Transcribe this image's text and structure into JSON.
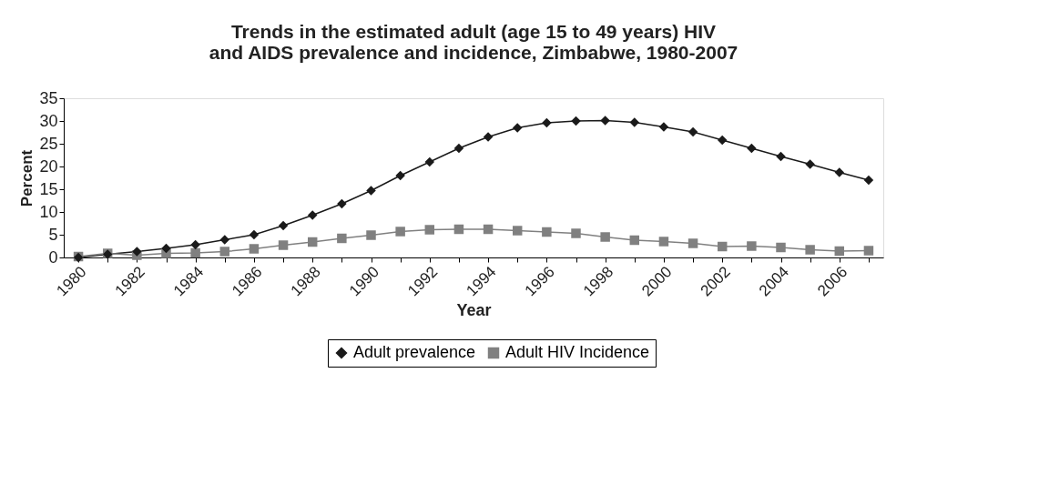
{
  "chart_data": {
    "type": "line",
    "title": "Trends in the estimated adult (age 15 to 49 years) HIV and AIDS prevalence and incidence, Zimbabwe, 1980-2007",
    "xlabel": "Year",
    "ylabel": "Percent",
    "categories": [
      "1980",
      null,
      "1982",
      null,
      "1984",
      null,
      "1986",
      null,
      "1988",
      null,
      "1990",
      null,
      "1992",
      null,
      "1994",
      null,
      "1996",
      null,
      "1998",
      null,
      "2000",
      null,
      "2002",
      null,
      "2004",
      null,
      "2006",
      null
    ],
    "series": [
      {
        "name": "Adult prevalence",
        "color": "#1a1a1a",
        "marker": "diamond",
        "values": [
          0,
          0.7,
          1.3,
          2,
          2.8,
          3.9,
          5,
          7,
          9.3,
          11.8,
          14.7,
          18,
          21,
          24,
          26.5,
          28.5,
          29.6,
          30,
          30.1,
          29.7,
          28.7,
          27.6,
          25.8,
          24,
          22.2,
          20.5,
          18.7,
          17
        ]
      },
      {
        "name": "Adult HIV Incidence",
        "color": "#808080",
        "marker": "square",
        "values": [
          0.2,
          0.9,
          0.5,
          0.9,
          1,
          1.3,
          1.9,
          2.7,
          3.4,
          4.2,
          4.9,
          5.7,
          6.1,
          6.2,
          6.2,
          5.9,
          5.6,
          5.3,
          4.5,
          3.8,
          3.5,
          3.1,
          2.4,
          2.5,
          2.2,
          1.7,
          1.4,
          1.5
        ]
      }
    ],
    "ylim": [
      0,
      35
    ],
    "yticks": [
      0,
      5,
      10,
      15,
      20,
      25,
      30,
      35
    ],
    "grid": false,
    "legend": "bottom"
  }
}
